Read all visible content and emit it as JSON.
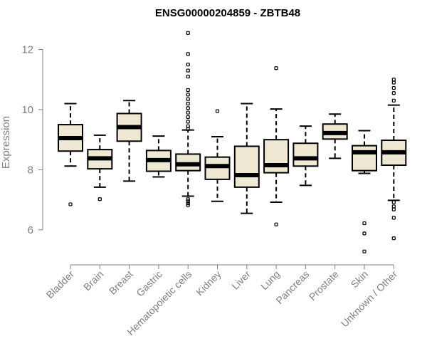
{
  "chart_data": {
    "type": "box",
    "title": "ENSG00000204859 - ZBTB48",
    "xlabel": "",
    "ylabel": "Expression",
    "ylim": [
      5.0,
      12.7
    ],
    "yticks": [
      6,
      8,
      10,
      12
    ],
    "box_color": "#EFE8D2",
    "categories": [
      "Bladder",
      "Brain",
      "Breast",
      "Gastric",
      "Hematopoietic cells",
      "Kidney",
      "Liver",
      "Lung",
      "Pancreas",
      "Prostate",
      "Skin",
      "Unknown / Other"
    ],
    "boxes": [
      {
        "category": "Bladder",
        "whisker_low": 8.12,
        "q1": 8.62,
        "median": 9.05,
        "q3": 9.5,
        "whisker_high": 10.2,
        "outliers": [
          6.85
        ]
      },
      {
        "category": "Brain",
        "whisker_low": 7.42,
        "q1": 8.03,
        "median": 8.38,
        "q3": 8.67,
        "whisker_high": 9.15,
        "outliers": [
          7.02
        ]
      },
      {
        "category": "Breast",
        "whisker_low": 7.62,
        "q1": 8.95,
        "median": 9.42,
        "q3": 9.87,
        "whisker_high": 10.3,
        "outliers": []
      },
      {
        "category": "Gastric",
        "whisker_low": 7.76,
        "q1": 7.95,
        "median": 8.32,
        "q3": 8.64,
        "whisker_high": 9.12,
        "outliers": []
      },
      {
        "category": "Hematopoietic cells",
        "whisker_low": 7.12,
        "q1": 7.97,
        "median": 8.18,
        "q3": 8.52,
        "whisker_high": 9.32,
        "outliers": [
          12.55,
          11.85,
          11.5,
          11.3,
          11.1,
          10.65,
          10.5,
          10.35,
          10.2,
          10.05,
          9.9,
          9.75,
          9.6,
          9.45,
          9.35,
          7.02,
          6.95,
          6.88,
          6.82
        ]
      },
      {
        "category": "Kidney",
        "whisker_low": 6.95,
        "q1": 7.68,
        "median": 8.12,
        "q3": 8.42,
        "whisker_high": 9.1,
        "outliers": [
          9.95
        ]
      },
      {
        "category": "Liver",
        "whisker_low": 6.55,
        "q1": 7.42,
        "median": 7.82,
        "q3": 8.78,
        "whisker_high": 10.2,
        "outliers": []
      },
      {
        "category": "Lung",
        "whisker_low": 6.92,
        "q1": 7.9,
        "median": 8.15,
        "q3": 9.0,
        "whisker_high": 10.02,
        "outliers": [
          11.38,
          6.18
        ]
      },
      {
        "category": "Pancreas",
        "whisker_low": 7.48,
        "q1": 8.12,
        "median": 8.38,
        "q3": 8.88,
        "whisker_high": 9.45,
        "outliers": []
      },
      {
        "category": "Prostate",
        "whisker_low": 8.38,
        "q1": 9.02,
        "median": 9.22,
        "q3": 9.52,
        "whisker_high": 9.85,
        "outliers": []
      },
      {
        "category": "Skin",
        "whisker_low": 7.88,
        "q1": 7.97,
        "median": 8.58,
        "q3": 8.8,
        "whisker_high": 9.3,
        "outliers": [
          6.22,
          5.88,
          5.28
        ]
      },
      {
        "category": "Unknown / Other",
        "whisker_low": 6.98,
        "q1": 8.15,
        "median": 8.58,
        "q3": 8.98,
        "whisker_high": 10.15,
        "outliers": [
          11.0,
          10.9,
          10.72,
          10.55,
          10.3,
          6.92,
          6.78,
          6.68,
          6.4,
          5.72
        ]
      }
    ]
  }
}
